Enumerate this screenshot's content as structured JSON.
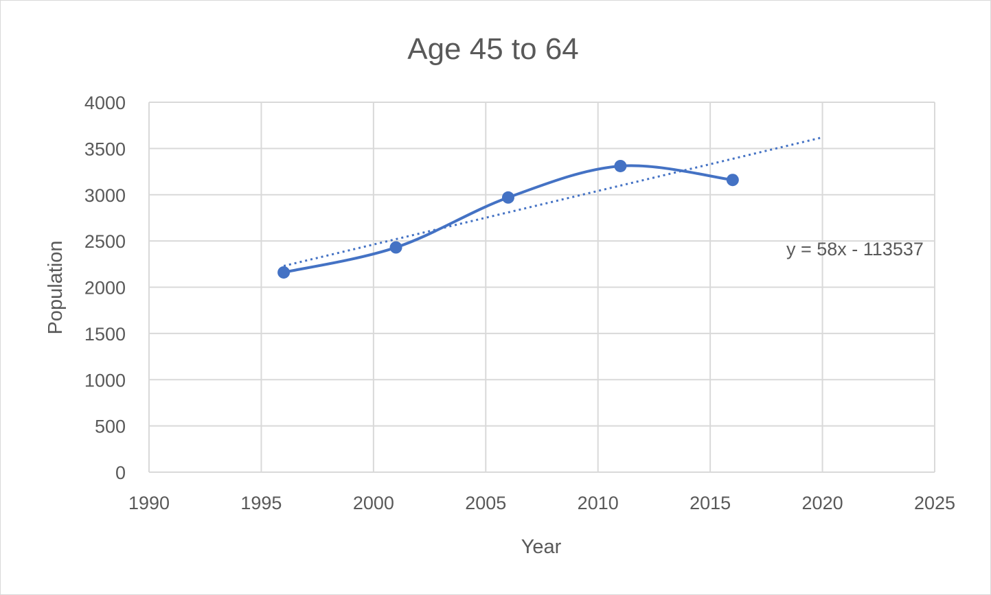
{
  "chart_data": {
    "type": "line",
    "title": "Age 45 to 64",
    "xlabel": "Year",
    "ylabel": "Population",
    "xlim": [
      1990,
      2025
    ],
    "ylim": [
      0,
      4000
    ],
    "x_ticks": [
      1990,
      1995,
      2000,
      2005,
      2010,
      2015,
      2020,
      2025
    ],
    "y_ticks": [
      0,
      500,
      1000,
      1500,
      2000,
      2500,
      3000,
      3500,
      4000
    ],
    "grid": true,
    "legend": "none",
    "series": [
      {
        "x": [
          1996,
          2001,
          2006,
          2011,
          2016
        ],
        "y": [
          2160,
          2430,
          2970,
          3310,
          3160
        ],
        "color": "#4472c4",
        "smooth": true,
        "markers": true
      }
    ],
    "trendline": {
      "type": "linear",
      "x_range": [
        1996,
        2020
      ],
      "y_range": [
        2230,
        3620
      ],
      "color": "#4472c4",
      "style": "dotted",
      "equation": "y = 58x - 113537"
    }
  }
}
